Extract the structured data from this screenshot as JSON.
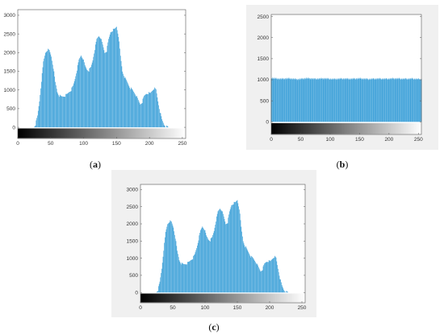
{
  "theme": {
    "bar_color": "#3a9fd8",
    "gray_bg": "#f0f0f0",
    "axes_color": "#555555"
  },
  "captions": [
    "a",
    "b",
    "c"
  ],
  "chart_data": [
    {
      "type": "bar",
      "panel_label": "a",
      "title": "",
      "xlabel": "",
      "ylabel": "",
      "xlim": [
        0,
        255
      ],
      "ylim": [
        -300,
        3150
      ],
      "xticks": [
        0,
        50,
        100,
        150,
        200,
        250
      ],
      "yticks": [
        0,
        500,
        1000,
        1500,
        2000,
        2500,
        3000
      ],
      "colorbar": "grayscale",
      "histogram": [
        [
          0,
          0
        ],
        [
          24,
          0
        ],
        [
          27,
          80
        ],
        [
          30,
          300
        ],
        [
          33,
          700
        ],
        [
          36,
          1250
        ],
        [
          39,
          1750
        ],
        [
          42,
          2000
        ],
        [
          45,
          2080
        ],
        [
          48,
          2050
        ],
        [
          51,
          1900
        ],
        [
          54,
          1600
        ],
        [
          57,
          1200
        ],
        [
          60,
          950
        ],
        [
          63,
          850
        ],
        [
          66,
          820
        ],
        [
          69,
          830
        ],
        [
          72,
          850
        ],
        [
          75,
          880
        ],
        [
          78,
          950
        ],
        [
          81,
          1000
        ],
        [
          84,
          1100
        ],
        [
          87,
          1300
        ],
        [
          90,
          1550
        ],
        [
          93,
          1800
        ],
        [
          96,
          1930
        ],
        [
          99,
          1850
        ],
        [
          102,
          1650
        ],
        [
          105,
          1550
        ],
        [
          108,
          1520
        ],
        [
          111,
          1600
        ],
        [
          114,
          1800
        ],
        [
          117,
          2100
        ],
        [
          120,
          2350
        ],
        [
          123,
          2450
        ],
        [
          126,
          2400
        ],
        [
          129,
          2200
        ],
        [
          132,
          2000
        ],
        [
          135,
          2050
        ],
        [
          138,
          2350
        ],
        [
          141,
          2550
        ],
        [
          144,
          2600
        ],
        [
          147,
          2620
        ],
        [
          150,
          2700
        ],
        [
          153,
          2450
        ],
        [
          156,
          1900
        ],
        [
          159,
          1500
        ],
        [
          162,
          1350
        ],
        [
          165,
          1250
        ],
        [
          168,
          1150
        ],
        [
          171,
          1050
        ],
        [
          174,
          1000
        ],
        [
          177,
          930
        ],
        [
          180,
          850
        ],
        [
          183,
          720
        ],
        [
          186,
          620
        ],
        [
          189,
          680
        ],
        [
          192,
          830
        ],
        [
          195,
          900
        ],
        [
          198,
          920
        ],
        [
          201,
          900
        ],
        [
          204,
          980
        ],
        [
          207,
          1050
        ],
        [
          210,
          1000
        ],
        [
          213,
          700
        ],
        [
          216,
          420
        ],
        [
          219,
          200
        ],
        [
          222,
          80
        ],
        [
          225,
          20
        ],
        [
          229,
          0
        ],
        [
          255,
          0
        ]
      ]
    },
    {
      "type": "bar",
      "panel_label": "b",
      "title": "",
      "xlabel": "",
      "ylabel": "",
      "xlim": [
        0,
        255
      ],
      "ylim": [
        -300,
        2550
      ],
      "xticks": [
        0,
        50,
        100,
        150,
        200,
        250
      ],
      "yticks": [
        0,
        500,
        1000,
        1500,
        2000,
        2500
      ],
      "colorbar": "grayscale",
      "histogram": [
        [
          0,
          1040
        ],
        [
          15,
          1020
        ],
        [
          30,
          1030
        ],
        [
          45,
          1010
        ],
        [
          60,
          1035
        ],
        [
          75,
          1020
        ],
        [
          90,
          1030
        ],
        [
          105,
          1015
        ],
        [
          120,
          1025
        ],
        [
          135,
          1020
        ],
        [
          150,
          1030
        ],
        [
          165,
          1015
        ],
        [
          180,
          1025
        ],
        [
          195,
          1020
        ],
        [
          210,
          1030
        ],
        [
          225,
          1020
        ],
        [
          240,
          1025
        ],
        [
          255,
          1010
        ]
      ]
    },
    {
      "type": "bar",
      "panel_label": "c",
      "title": "",
      "xlabel": "",
      "ylabel": "",
      "xlim": [
        0,
        255
      ],
      "ylim": [
        -300,
        3150
      ],
      "xticks": [
        0,
        50,
        100,
        150,
        200,
        250
      ],
      "yticks": [
        0,
        500,
        1000,
        1500,
        2000,
        2500,
        3000
      ],
      "colorbar": "grayscale",
      "histogram": [
        [
          0,
          0
        ],
        [
          24,
          0
        ],
        [
          27,
          80
        ],
        [
          30,
          300
        ],
        [
          33,
          700
        ],
        [
          36,
          1250
        ],
        [
          39,
          1750
        ],
        [
          42,
          2000
        ],
        [
          45,
          2080
        ],
        [
          48,
          2050
        ],
        [
          51,
          1900
        ],
        [
          54,
          1600
        ],
        [
          57,
          1200
        ],
        [
          60,
          950
        ],
        [
          63,
          850
        ],
        [
          66,
          820
        ],
        [
          69,
          830
        ],
        [
          72,
          850
        ],
        [
          75,
          880
        ],
        [
          78,
          950
        ],
        [
          81,
          1000
        ],
        [
          84,
          1100
        ],
        [
          87,
          1300
        ],
        [
          90,
          1550
        ],
        [
          93,
          1800
        ],
        [
          96,
          1930
        ],
        [
          99,
          1850
        ],
        [
          102,
          1650
        ],
        [
          105,
          1550
        ],
        [
          108,
          1520
        ],
        [
          111,
          1600
        ],
        [
          114,
          1800
        ],
        [
          117,
          2100
        ],
        [
          120,
          2350
        ],
        [
          123,
          2450
        ],
        [
          126,
          2400
        ],
        [
          129,
          2200
        ],
        [
          132,
          2000
        ],
        [
          135,
          2050
        ],
        [
          138,
          2350
        ],
        [
          141,
          2550
        ],
        [
          144,
          2600
        ],
        [
          147,
          2620
        ],
        [
          150,
          2700
        ],
        [
          153,
          2450
        ],
        [
          156,
          1900
        ],
        [
          159,
          1500
        ],
        [
          162,
          1350
        ],
        [
          165,
          1250
        ],
        [
          168,
          1150
        ],
        [
          171,
          1050
        ],
        [
          174,
          1000
        ],
        [
          177,
          930
        ],
        [
          180,
          850
        ],
        [
          183,
          720
        ],
        [
          186,
          620
        ],
        [
          189,
          680
        ],
        [
          192,
          830
        ],
        [
          195,
          900
        ],
        [
          198,
          920
        ],
        [
          201,
          900
        ],
        [
          204,
          980
        ],
        [
          207,
          1050
        ],
        [
          210,
          1000
        ],
        [
          213,
          700
        ],
        [
          216,
          420
        ],
        [
          219,
          200
        ],
        [
          222,
          80
        ],
        [
          225,
          20
        ],
        [
          229,
          0
        ],
        [
          255,
          0
        ]
      ]
    }
  ]
}
